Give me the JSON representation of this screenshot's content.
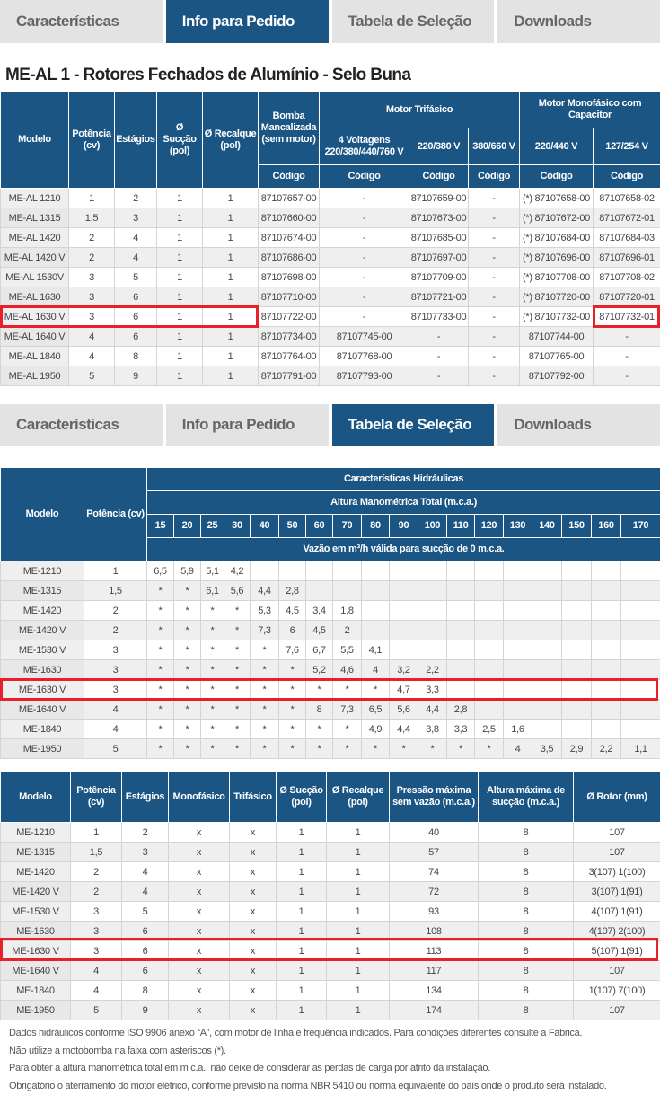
{
  "tabs_top": {
    "items": [
      "Características",
      "Info para Pedido",
      "Tabela de Seleção",
      "Downloads"
    ],
    "active": 1
  },
  "tabs_bottom": {
    "items": [
      "Características",
      "Info para Pedido",
      "Tabela de Seleção",
      "Downloads"
    ],
    "active": 2
  },
  "section_title": "ME-AL 1 - Rotores Fechados de Alumínio - Selo Buna",
  "highlight_color": "#e8202a",
  "header_color": "#1b5584",
  "order_table": {
    "headers": {
      "modelo": "Modelo",
      "potencia": "Potência (cv)",
      "estagios": "Estágios",
      "succao": "Ø Sucção (pol)",
      "recalque": "Ø Recalque (pol)",
      "bomba": "Bomba Mancalizada (sem motor)",
      "trifasico": "Motor Trifásico",
      "monofasico": "Motor Monofásico com Capacitor",
      "v4": "4 Voltagens 220/380/440/760 V",
      "v220_380": "220/380 V",
      "v380_660": "380/660 V",
      "v220_440": "220/440 V",
      "v127_254": "127/254 V",
      "codigo": "Código"
    },
    "rows": [
      [
        "ME-AL 1210",
        "1",
        "2",
        "1",
        "1",
        "87107657-00",
        "-",
        "87107659-00",
        "-",
        "(*) 87107658-00",
        "87107658-02"
      ],
      [
        "ME-AL 1315",
        "1,5",
        "3",
        "1",
        "1",
        "87107660-00",
        "-",
        "87107673-00",
        "-",
        "(*) 87107672-00",
        "87107672-01"
      ],
      [
        "ME-AL 1420",
        "2",
        "4",
        "1",
        "1",
        "87107674-00",
        "-",
        "87107685-00",
        "-",
        "(*) 87107684-00",
        "87107684-03"
      ],
      [
        "ME-AL 1420 V",
        "2",
        "4",
        "1",
        "1",
        "87107686-00",
        "-",
        "87107697-00",
        "-",
        "(*) 87107696-00",
        "87107696-01"
      ],
      [
        "ME-AL 1530V",
        "3",
        "5",
        "1",
        "1",
        "87107698-00",
        "-",
        "87107709-00",
        "-",
        "(*) 87107708-00",
        "87107708-02"
      ],
      [
        "ME-AL 1630",
        "3",
        "6",
        "1",
        "1",
        "87107710-00",
        "-",
        "87107721-00",
        "-",
        "(*) 87107720-00",
        "87107720-01"
      ],
      [
        "ME-AL 1630 V",
        "3",
        "6",
        "1",
        "1",
        "87107722-00",
        "-",
        "87107733-00",
        "-",
        "(*) 87107732-00",
        "87107732-01"
      ],
      [
        "ME-AL 1640 V",
        "4",
        "6",
        "1",
        "1",
        "87107734-00",
        "87107745-00",
        "-",
        "-",
        "87107744-00",
        "-"
      ],
      [
        "ME-AL 1840",
        "4",
        "8",
        "1",
        "1",
        "87107764-00",
        "87107768-00",
        "-",
        "-",
        "87107765-00",
        "-"
      ],
      [
        "ME-AL 1950",
        "5",
        "9",
        "1",
        "1",
        "87107791-00",
        "87107793-00",
        "-",
        "-",
        "87107792-00",
        "-"
      ]
    ],
    "highlighted_row": 6
  },
  "selection_table": {
    "headers": {
      "modelo": "Modelo",
      "potencia": "Potência (cv)",
      "caracteristicas": "Características Hidráulicas",
      "altura": "Altura Manométrica Total (m.c.a.)",
      "vazao": "Vazão em m³/h válida para sucção de 0 m.c.a."
    },
    "heights": [
      "15",
      "20",
      "25",
      "30",
      "40",
      "50",
      "60",
      "70",
      "80",
      "90",
      "100",
      "110",
      "120",
      "130",
      "140",
      "150",
      "160",
      "170"
    ],
    "rows": [
      {
        "model": "ME-1210",
        "cv": "1",
        "values": [
          "6,5",
          "5,9",
          "5,1",
          "4,2",
          "",
          "",
          "",
          "",
          "",
          "",
          "",
          "",
          "",
          "",
          "",
          "",
          "",
          ""
        ]
      },
      {
        "model": "ME-1315",
        "cv": "1,5",
        "values": [
          "*",
          "*",
          "6,1",
          "5,6",
          "4,4",
          "2,8",
          "",
          "",
          "",
          "",
          "",
          "",
          "",
          "",
          "",
          "",
          "",
          ""
        ]
      },
      {
        "model": "ME-1420",
        "cv": "2",
        "values": [
          "*",
          "*",
          "*",
          "*",
          "5,3",
          "4,5",
          "3,4",
          "1,8",
          "",
          "",
          "",
          "",
          "",
          "",
          "",
          "",
          "",
          ""
        ]
      },
      {
        "model": "ME-1420 V",
        "cv": "2",
        "values": [
          "*",
          "*",
          "*",
          "*",
          "7,3",
          "6",
          "4,5",
          "2",
          "",
          "",
          "",
          "",
          "",
          "",
          "",
          "",
          "",
          ""
        ]
      },
      {
        "model": "ME-1530 V",
        "cv": "3",
        "values": [
          "*",
          "*",
          "*",
          "*",
          "*",
          "7,6",
          "6,7",
          "5,5",
          "4,1",
          "",
          "",
          "",
          "",
          "",
          "",
          "",
          "",
          ""
        ]
      },
      {
        "model": "ME-1630",
        "cv": "3",
        "values": [
          "*",
          "*",
          "*",
          "*",
          "*",
          "*",
          "5,2",
          "4,6",
          "4",
          "3,2",
          "2,2",
          "",
          "",
          "",
          "",
          "",
          "",
          ""
        ]
      },
      {
        "model": "ME-1630 V",
        "cv": "3",
        "values": [
          "*",
          "*",
          "*",
          "*",
          "*",
          "*",
          "*",
          "*",
          "*",
          "4,7",
          "3,3",
          "",
          "",
          "",
          "",
          "",
          "",
          ""
        ]
      },
      {
        "model": "ME-1640 V",
        "cv": "4",
        "values": [
          "*",
          "*",
          "*",
          "*",
          "*",
          "*",
          "8",
          "7,3",
          "6,5",
          "5,6",
          "4,4",
          "2,8",
          "",
          "",
          "",
          "",
          "",
          ""
        ]
      },
      {
        "model": "ME-1840",
        "cv": "4",
        "values": [
          "*",
          "*",
          "*",
          "*",
          "*",
          "*",
          "*",
          "*",
          "4,9",
          "4,4",
          "3,8",
          "3,3",
          "2,5",
          "1,6",
          "",
          "",
          "",
          ""
        ]
      },
      {
        "model": "ME-1950",
        "cv": "5",
        "values": [
          "*",
          "*",
          "*",
          "*",
          "*",
          "*",
          "*",
          "*",
          "*",
          "*",
          "*",
          "*",
          "*",
          "4",
          "3,5",
          "2,9",
          "2,2",
          "1,1"
        ]
      }
    ],
    "highlighted_row": 6
  },
  "spec_table": {
    "headers": [
      "Modelo",
      "Potência (cv)",
      "Estágios",
      "Monofásico",
      "Trifásico",
      "Ø Sucção (pol)",
      "Ø Recalque (pol)",
      "Pressão máxima sem vazão (m.c.a.)",
      "Altura máxima de sucção (m.c.a.)",
      "Ø Rotor (mm)"
    ],
    "rows": [
      [
        "ME-1210",
        "1",
        "2",
        "x",
        "x",
        "1",
        "1",
        "40",
        "8",
        "107"
      ],
      [
        "ME-1315",
        "1,5",
        "3",
        "x",
        "x",
        "1",
        "1",
        "57",
        "8",
        "107"
      ],
      [
        "ME-1420",
        "2",
        "4",
        "x",
        "x",
        "1",
        "1",
        "74",
        "8",
        "3(107) 1(100)"
      ],
      [
        "ME-1420 V",
        "2",
        "4",
        "x",
        "x",
        "1",
        "1",
        "72",
        "8",
        "3(107) 1(91)"
      ],
      [
        "ME-1530 V",
        "3",
        "5",
        "x",
        "x",
        "1",
        "1",
        "93",
        "8",
        "4(107) 1(91)"
      ],
      [
        "ME-1630",
        "3",
        "6",
        "x",
        "x",
        "1",
        "1",
        "108",
        "8",
        "4(107) 2(100)"
      ],
      [
        "ME-1630 V",
        "3",
        "6",
        "x",
        "x",
        "1",
        "1",
        "113",
        "8",
        "5(107) 1(91)"
      ],
      [
        "ME-1640 V",
        "4",
        "6",
        "x",
        "x",
        "1",
        "1",
        "117",
        "8",
        "107"
      ],
      [
        "ME-1840",
        "4",
        "8",
        "x",
        "x",
        "1",
        "1",
        "134",
        "8",
        "1(107) 7(100)"
      ],
      [
        "ME-1950",
        "5",
        "9",
        "x",
        "x",
        "1",
        "1",
        "174",
        "8",
        "107"
      ]
    ],
    "highlighted_row": 6
  },
  "notes": [
    "Dados hidráulicos conforme ISO 9906 anexo “A”, com motor de linha e frequência indicados. Para condições diferentes consulte a Fábrica.",
    "Não utilize a motobomba na faixa com asteriscos (*).",
    "Para obter a altura manométrica total em m c.a., não deixe de considerar as perdas de carga por atrito da instalação.",
    "Obrigatório o aterramento do motor elétrico, conforme previsto na norma NBR 5410 ou norma equivalente do país onde o produto será instalado."
  ]
}
